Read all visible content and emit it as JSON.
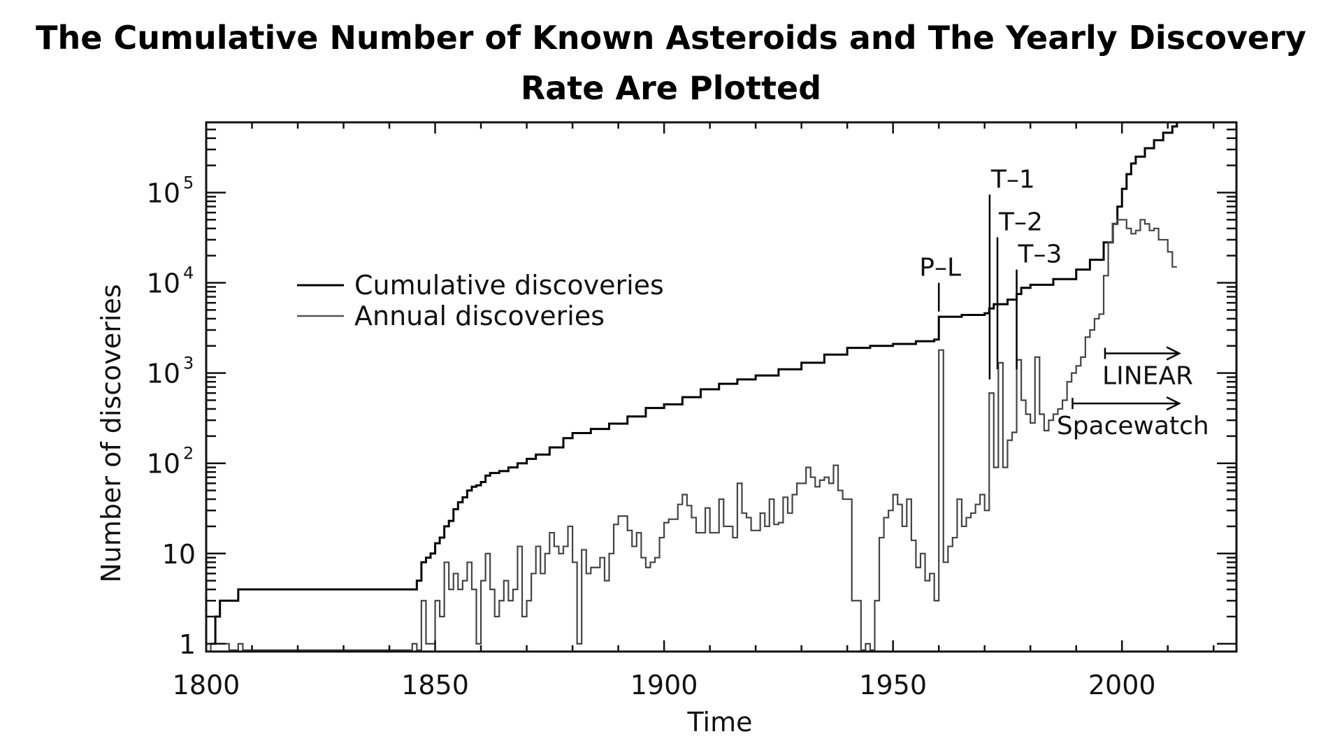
{
  "title_line1": "The Cumulative Number of Known Asteroids and The Yearly Discovery",
  "title_line2": "Rate Are Plotted",
  "chart_data": {
    "type": "line",
    "title": "The Cumulative Number of Known Asteroids and The Yearly Discovery Rate Are Plotted",
    "xlabel": "Time",
    "ylabel": "Number of discoveries",
    "yscale": "log",
    "xlim": [
      1800,
      2025
    ],
    "ylim": [
      0.82,
      600000
    ],
    "x_ticks": [
      1800,
      1850,
      1900,
      1950,
      2000
    ],
    "y_ticks": [
      {
        "value": 1,
        "label": "1"
      },
      {
        "value": 10,
        "label": "10"
      },
      {
        "value": 100,
        "label": "10",
        "sup": "2"
      },
      {
        "value": 1000,
        "label": "10",
        "sup": "3"
      },
      {
        "value": 10000,
        "label": "10",
        "sup": "4"
      },
      {
        "value": 100000,
        "label": "10",
        "sup": "5"
      }
    ],
    "grid": false,
    "legend_position": "upper-left",
    "series": [
      {
        "name": "Cumulative discoveries",
        "color": "#000000",
        "step": true,
        "points": [
          [
            1801,
            1
          ],
          [
            1802,
            2
          ],
          [
            1803,
            3
          ],
          [
            1804,
            3
          ],
          [
            1807,
            4
          ],
          [
            1845,
            4
          ],
          [
            1846,
            5
          ],
          [
            1847,
            8
          ],
          [
            1848,
            9
          ],
          [
            1849,
            10
          ],
          [
            1850,
            13
          ],
          [
            1851,
            15
          ],
          [
            1852,
            20
          ],
          [
            1853,
            23
          ],
          [
            1854,
            31
          ],
          [
            1855,
            37
          ],
          [
            1856,
            42
          ],
          [
            1857,
            50
          ],
          [
            1858,
            55
          ],
          [
            1859,
            57
          ],
          [
            1860,
            62
          ],
          [
            1861,
            73
          ],
          [
            1862,
            78
          ],
          [
            1864,
            82
          ],
          [
            1866,
            90
          ],
          [
            1868,
            100
          ],
          [
            1870,
            112
          ],
          [
            1872,
            125
          ],
          [
            1875,
            150
          ],
          [
            1878,
            190
          ],
          [
            1880,
            216
          ],
          [
            1884,
            240
          ],
          [
            1888,
            275
          ],
          [
            1892,
            330
          ],
          [
            1896,
            410
          ],
          [
            1900,
            450
          ],
          [
            1904,
            540
          ],
          [
            1908,
            660
          ],
          [
            1912,
            760
          ],
          [
            1916,
            850
          ],
          [
            1920,
            940
          ],
          [
            1925,
            1100
          ],
          [
            1930,
            1300
          ],
          [
            1935,
            1600
          ],
          [
            1940,
            1900
          ],
          [
            1945,
            2000
          ],
          [
            1950,
            2100
          ],
          [
            1955,
            2250
          ],
          [
            1959,
            2350
          ],
          [
            1960,
            4200
          ],
          [
            1965,
            4400
          ],
          [
            1970,
            4600
          ],
          [
            1971,
            5200
          ],
          [
            1972,
            5800
          ],
          [
            1975,
            6500
          ],
          [
            1977,
            7500
          ],
          [
            1978,
            8800
          ],
          [
            1980,
            9500
          ],
          [
            1985,
            11000
          ],
          [
            1990,
            14000
          ],
          [
            1993,
            18000
          ],
          [
            1996,
            28000
          ],
          [
            1998,
            45000
          ],
          [
            1999,
            70000
          ],
          [
            2000,
            110000
          ],
          [
            2001,
            160000
          ],
          [
            2002,
            210000
          ],
          [
            2003,
            250000
          ],
          [
            2005,
            310000
          ],
          [
            2007,
            380000
          ],
          [
            2009,
            460000
          ],
          [
            2011,
            540000
          ],
          [
            2012,
            600000
          ]
        ]
      },
      {
        "name": "Annual discoveries",
        "color": "#444444",
        "step": true,
        "points": [
          [
            1801,
            1
          ],
          [
            1802,
            1
          ],
          [
            1803,
            1
          ],
          [
            1804,
            1
          ],
          [
            1805,
            0.85
          ],
          [
            1807,
            1
          ],
          [
            1808,
            0.85
          ],
          [
            1845,
            1
          ],
          [
            1846,
            0.85
          ],
          [
            1847,
            3
          ],
          [
            1848,
            1
          ],
          [
            1849,
            1
          ],
          [
            1850,
            3
          ],
          [
            1851,
            2
          ],
          [
            1852,
            8
          ],
          [
            1853,
            4
          ],
          [
            1854,
            6
          ],
          [
            1855,
            4
          ],
          [
            1856,
            5
          ],
          [
            1857,
            8
          ],
          [
            1858,
            4
          ],
          [
            1859,
            1
          ],
          [
            1860,
            5
          ],
          [
            1861,
            10
          ],
          [
            1862,
            4
          ],
          [
            1863,
            2
          ],
          [
            1864,
            3
          ],
          [
            1865,
            5
          ],
          [
            1866,
            3
          ],
          [
            1867,
            4
          ],
          [
            1868,
            12
          ],
          [
            1869,
            2
          ],
          [
            1870,
            3
          ],
          [
            1871,
            6
          ],
          [
            1872,
            12
          ],
          [
            1873,
            6
          ],
          [
            1874,
            10
          ],
          [
            1875,
            17
          ],
          [
            1876,
            12
          ],
          [
            1877,
            10
          ],
          [
            1878,
            12
          ],
          [
            1879,
            20
          ],
          [
            1880,
            8
          ],
          [
            1881,
            1
          ],
          [
            1882,
            11
          ],
          [
            1883,
            6
          ],
          [
            1884,
            7
          ],
          [
            1885,
            7
          ],
          [
            1886,
            9
          ],
          [
            1887,
            5
          ],
          [
            1888,
            10
          ],
          [
            1889,
            21
          ],
          [
            1890,
            26
          ],
          [
            1891,
            26
          ],
          [
            1892,
            18
          ],
          [
            1893,
            12
          ],
          [
            1894,
            17
          ],
          [
            1895,
            9
          ],
          [
            1896,
            7
          ],
          [
            1897,
            8
          ],
          [
            1898,
            9
          ],
          [
            1899,
            15
          ],
          [
            1900,
            22
          ],
          [
            1901,
            24
          ],
          [
            1902,
            24
          ],
          [
            1903,
            35
          ],
          [
            1904,
            45
          ],
          [
            1905,
            34
          ],
          [
            1906,
            25
          ],
          [
            1907,
            17
          ],
          [
            1908,
            17
          ],
          [
            1909,
            32
          ],
          [
            1910,
            17
          ],
          [
            1911,
            17
          ],
          [
            1912,
            40
          ],
          [
            1913,
            20
          ],
          [
            1914,
            20
          ],
          [
            1915,
            15
          ],
          [
            1916,
            60
          ],
          [
            1917,
            28
          ],
          [
            1918,
            25
          ],
          [
            1919,
            18
          ],
          [
            1920,
            18
          ],
          [
            1921,
            28
          ],
          [
            1922,
            20
          ],
          [
            1923,
            40
          ],
          [
            1924,
            21
          ],
          [
            1925,
            22
          ],
          [
            1926,
            42
          ],
          [
            1927,
            28
          ],
          [
            1928,
            45
          ],
          [
            1929,
            60
          ],
          [
            1930,
            60
          ],
          [
            1931,
            90
          ],
          [
            1932,
            70
          ],
          [
            1933,
            55
          ],
          [
            1934,
            65
          ],
          [
            1935,
            70
          ],
          [
            1936,
            60
          ],
          [
            1937,
            95
          ],
          [
            1938,
            50
          ],
          [
            1939,
            40
          ],
          [
            1940,
            40
          ],
          [
            1941,
            3
          ],
          [
            1942,
            3
          ],
          [
            1943,
            0.85
          ],
          [
            1944,
            1
          ],
          [
            1945,
            0.85
          ],
          [
            1946,
            3
          ],
          [
            1947,
            15
          ],
          [
            1948,
            25
          ],
          [
            1949,
            30
          ],
          [
            1950,
            45
          ],
          [
            1951,
            35
          ],
          [
            1952,
            20
          ],
          [
            1953,
            40
          ],
          [
            1954,
            14
          ],
          [
            1955,
            7
          ],
          [
            1956,
            10
          ],
          [
            1957,
            5
          ],
          [
            1958,
            6
          ],
          [
            1959,
            3
          ],
          [
            1960,
            1800
          ],
          [
            1961,
            8
          ],
          [
            1962,
            12
          ],
          [
            1963,
            15
          ],
          [
            1964,
            40
          ],
          [
            1965,
            20
          ],
          [
            1966,
            25
          ],
          [
            1967,
            28
          ],
          [
            1968,
            35
          ],
          [
            1969,
            45
          ],
          [
            1970,
            30
          ],
          [
            1971,
            600
          ],
          [
            1972,
            90
          ],
          [
            1973,
            1300
          ],
          [
            1974,
            90
          ],
          [
            1975,
            180
          ],
          [
            1976,
            220
          ],
          [
            1977,
            1400
          ],
          [
            1978,
            500
          ],
          [
            1979,
            350
          ],
          [
            1980,
            280
          ],
          [
            1981,
            1500
          ],
          [
            1982,
            350
          ],
          [
            1983,
            230
          ],
          [
            1984,
            300
          ],
          [
            1985,
            350
          ],
          [
            1986,
            400
          ],
          [
            1987,
            500
          ],
          [
            1988,
            800
          ],
          [
            1989,
            1000
          ],
          [
            1990,
            1200
          ],
          [
            1991,
            1500
          ],
          [
            1992,
            2500
          ],
          [
            1993,
            3000
          ],
          [
            1994,
            4000
          ],
          [
            1995,
            4500
          ],
          [
            1996,
            12000
          ],
          [
            1997,
            28000
          ],
          [
            1998,
            45000
          ],
          [
            1999,
            50000
          ],
          [
            2000,
            50000
          ],
          [
            2001,
            40000
          ],
          [
            2002,
            35000
          ],
          [
            2003,
            38000
          ],
          [
            2004,
            50000
          ],
          [
            2005,
            45000
          ],
          [
            2006,
            38000
          ],
          [
            2007,
            40000
          ],
          [
            2008,
            30000
          ],
          [
            2009,
            30000
          ],
          [
            2010,
            22000
          ],
          [
            2011,
            15000
          ]
        ]
      }
    ],
    "annotations": [
      {
        "label": "P–L",
        "year": 1960.0,
        "line_top": 10000,
        "line_bottom": 4800
      },
      {
        "label": "T–1",
        "year": 1971.1,
        "line_top": 95000,
        "line_bottom": 850
      },
      {
        "label": "T–2",
        "year": 1972.8,
        "line_top": 32000,
        "line_bottom": 1100
      },
      {
        "label": "T–3",
        "year": 1977.0,
        "line_top": 14000,
        "line_bottom": 1100
      }
    ],
    "arrows": [
      {
        "label": "LINEAR",
        "from_year": 1996.3,
        "to_year": 2012.5,
        "y_value": 1650
      },
      {
        "label": "Spacewatch",
        "from_year": 1989.2,
        "to_year": 2012.5,
        "y_value": 460
      }
    ]
  }
}
